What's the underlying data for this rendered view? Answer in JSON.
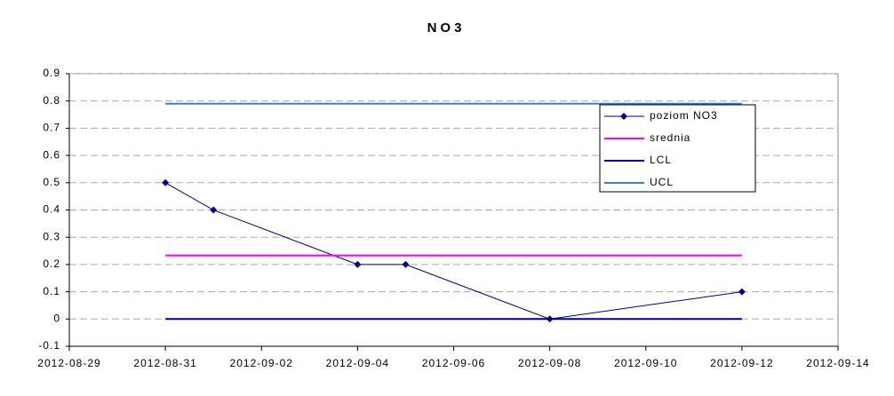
{
  "chart_data": {
    "type": "line",
    "title": "NO3",
    "series": [
      {
        "name": "poziom NO3",
        "color": "#000080",
        "marker": "diamond",
        "width": 1,
        "x": [
          "2012-08-31",
          "2012-09-01",
          "2012-09-04",
          "2012-09-05",
          "2012-09-08",
          "2012-09-12"
        ],
        "values": [
          0.5,
          0.4,
          0.2,
          0.2,
          0,
          0.1
        ]
      },
      {
        "name": "srednia",
        "color": "#ff00ff",
        "width": 2,
        "x": [
          "2012-08-31",
          "2012-09-12"
        ],
        "values": [
          0.233,
          0.233
        ]
      },
      {
        "name": "LCL",
        "color": "#000080",
        "width": 2,
        "x": [
          "2012-08-31",
          "2012-09-12"
        ],
        "values": [
          0,
          0
        ]
      },
      {
        "name": "UCL",
        "color": "#3a7fd5",
        "width": 2,
        "x": [
          "2012-08-31",
          "2012-09-12"
        ],
        "values": [
          0.79,
          0.79
        ]
      }
    ],
    "xlim": [
      "2012-08-29",
      "2012-09-14"
    ],
    "xticks": [
      "2012-08-29",
      "2012-08-31",
      "2012-09-02",
      "2012-09-04",
      "2012-09-06",
      "2012-09-08",
      "2012-09-10",
      "2012-09-12",
      "2012-09-14"
    ],
    "ylim": [
      -0.1,
      0.9
    ],
    "yticks": [
      -0.1,
      0,
      0.1,
      0.2,
      0.3,
      0.4,
      0.5,
      0.6,
      0.7,
      0.8,
      0.9
    ],
    "grid": true,
    "legend": "top-right"
  }
}
